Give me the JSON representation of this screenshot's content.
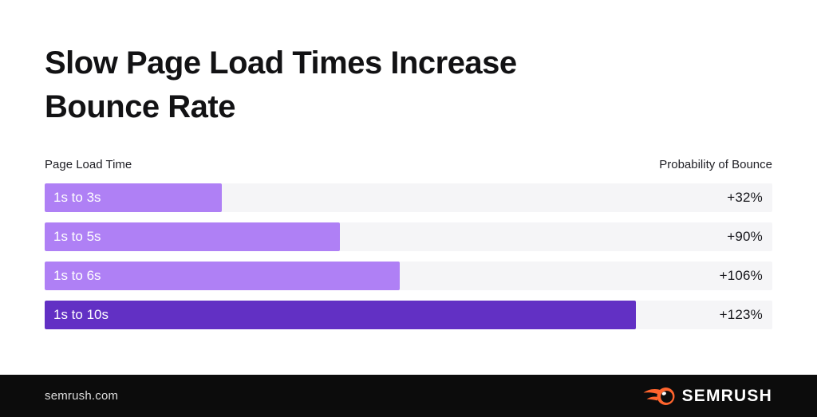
{
  "header": {
    "title": "Slow Page Load Times Increase Bounce Rate"
  },
  "chart_data": {
    "type": "bar",
    "orientation": "horizontal",
    "title": "Slow Page Load Times Increase Bounce Rate",
    "col_header_left": "Page Load Time",
    "col_header_right": "Probability of Bounce",
    "categories": [
      "1s to 3s",
      "1s to 5s",
      "1s to 6s",
      "1s to 10s"
    ],
    "values": [
      32,
      90,
      106,
      123
    ],
    "value_labels": [
      "+32%",
      "+90%",
      "+106%",
      "+123%"
    ],
    "bar_width_pct": [
      24.3,
      40.6,
      48.8,
      81.2
    ],
    "bar_colors": [
      "#AF80F5",
      "#AF80F5",
      "#AF80F5",
      "#6230C4"
    ],
    "track_color": "#F5F5F7",
    "grid": false,
    "legend": "none"
  },
  "footer": {
    "site": "semrush.com",
    "logo_text": "SEMRUSH",
    "logo_color": "#FF642D",
    "background": "#0C0C0C"
  }
}
